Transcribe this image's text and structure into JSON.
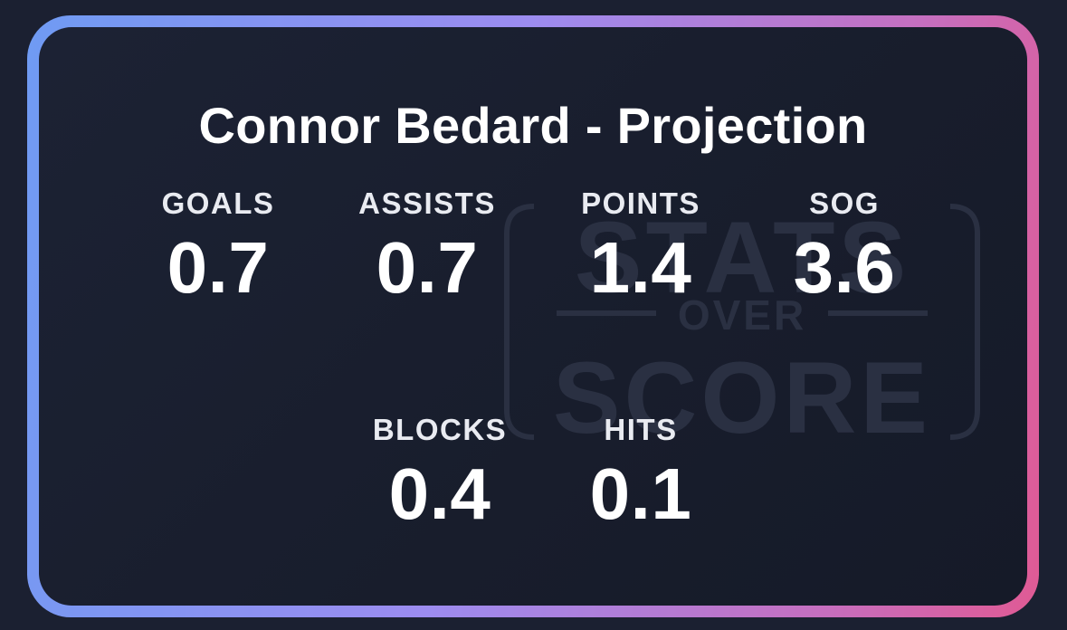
{
  "card": {
    "title": "Connor Bedard - Projection",
    "watermark": {
      "top": "STATS",
      "middle": "OVER",
      "bottom": "SCORE"
    },
    "stats": [
      {
        "label": "GOALS",
        "value": "0.7"
      },
      {
        "label": "ASSISTS",
        "value": "0.7"
      },
      {
        "label": "POINTS",
        "value": "1.4"
      },
      {
        "label": "SOG",
        "value": "3.6"
      },
      {
        "label": "BLOCKS",
        "value": "0.4"
      },
      {
        "label": "HITS",
        "value": "0.1"
      }
    ]
  },
  "colors": {
    "background": "#1b2031",
    "card_background": "#181d2c",
    "border_gradient": [
      "#6f9bf3",
      "#9c8cf0",
      "#c56fc0",
      "#e05a94"
    ],
    "text": "#ffffff"
  }
}
